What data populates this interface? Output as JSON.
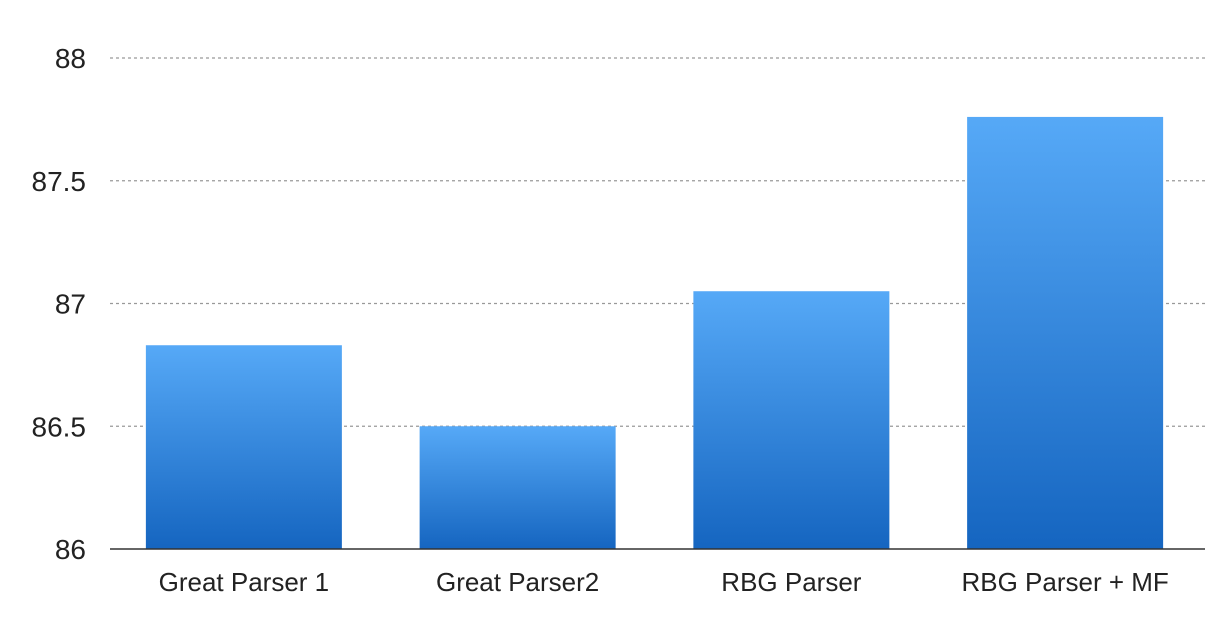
{
  "chart_data": {
    "type": "bar",
    "title": "",
    "xlabel": "",
    "ylabel": "",
    "categories": [
      "Great Parser 1",
      "Great Parser2",
      "RBG Parser",
      "RBG Parser + MF"
    ],
    "values": [
      86.83,
      86.5,
      87.05,
      87.76
    ],
    "ylim": [
      86,
      88
    ],
    "yticks": [
      86,
      86.5,
      87,
      87.5,
      88
    ],
    "ytick_labels": [
      "86",
      "86.5",
      "87",
      "87.5",
      "88"
    ],
    "grid": true,
    "legend": "none",
    "colors": {
      "bar_top": "#56A9F7",
      "bar_bottom": "#1565C0",
      "grid": "#999999",
      "axis": "#333333"
    }
  }
}
